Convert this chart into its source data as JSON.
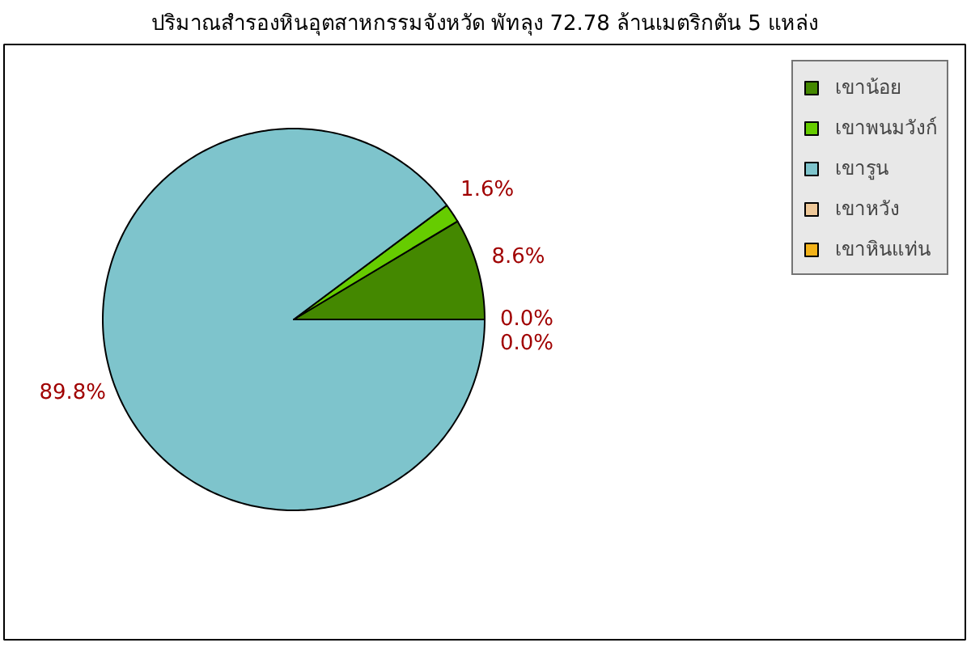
{
  "chart_data": {
    "type": "pie",
    "title": "ปริมาณสำรองหินอุตสาหกรรมจังหวัด พัทลุง 72.78 ล้านเมตริกตัน 5 แหล่ง",
    "categories": [
      "เขาน้อย",
      "เขาพนมวังก์",
      "เขารูน",
      "เขาหวัง",
      "เขาหินแท่น"
    ],
    "values": [
      8.6,
      1.6,
      89.8,
      0.0,
      0.0
    ],
    "colors": [
      "#448800",
      "#66cc00",
      "#7ec4cc",
      "#eec899",
      "#f3b31a"
    ],
    "value_labels": [
      "8.6%",
      "1.6%",
      "89.8%",
      "0.0%",
      "0.0%"
    ],
    "legend": "top right"
  }
}
